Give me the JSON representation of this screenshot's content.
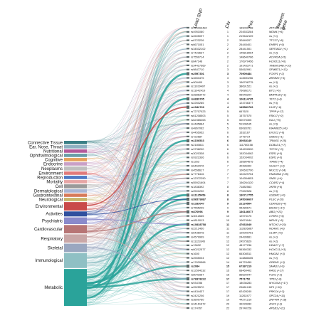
{
  "headers": {
    "snp": "Lead SNP",
    "chr": "Chr",
    "pos": "Pos",
    "gene": "Nearest gene"
  },
  "categories": [
    {
      "label": "Connective Tissue",
      "color": "#3a7f86",
      "size": 1
    },
    {
      "label": "Ear, Nose, Throat",
      "color": "#8fb0c2",
      "size": 1
    },
    {
      "label": "Nutritional",
      "color": "#b35a9a",
      "size": 1
    },
    {
      "label": "Ophthalmological",
      "color": "#6a9ea8",
      "size": 1
    },
    {
      "label": "Cognitive",
      "color": "#e6a15c",
      "size": 1
    },
    {
      "label": "Endocrine",
      "color": "#c9a0c7",
      "size": 1
    },
    {
      "label": "Neoplasms",
      "color": "#bfbfbf",
      "size": 1.2
    },
    {
      "label": "Environment",
      "color": "#e07a7a",
      "size": 1
    },
    {
      "label": "Reproduction",
      "color": "#4e79c4",
      "size": 1
    },
    {
      "label": "Mortality",
      "color": "#e6a5a5",
      "size": 1
    },
    {
      "label": "Cell",
      "color": "#9a9a9a",
      "size": 1.2
    },
    {
      "label": "Dermatological",
      "color": "#a9b5d4",
      "size": 1
    },
    {
      "label": "Gastrointestinal",
      "color": "#d67a5a",
      "size": 1
    },
    {
      "label": "Neurological",
      "color": "#c7b56a",
      "size": 1
    },
    {
      "label": "Environmental",
      "color": "#c94a4a",
      "size": 2.5
    },
    {
      "label": "Activities",
      "color": "#2f4f9e",
      "size": 1.5
    },
    {
      "label": "Psychiatric",
      "color": "#8a8acb",
      "size": 2
    },
    {
      "label": "Cardiovascular",
      "color": "#b77575",
      "size": 2.5
    },
    {
      "label": "Respiratory",
      "color": "#c9a7a7",
      "size": 2.5
    },
    {
      "label": "Skeletal",
      "color": "#9aa7c0",
      "size": 2.5
    },
    {
      "label": "Immunological",
      "color": "#8fc0c4",
      "size": 4.5
    },
    {
      "label": "Metabolic",
      "color": "#2aa39a",
      "size": 11
    }
  ],
  "rows": [
    {
      "snp": "rs145163484",
      "chr": "1",
      "pos": "169090748",
      "gene": "ATP1B1 (+8)",
      "w": 1
    },
    {
      "snp": "rs4951080",
      "chr": "1",
      "pos": "204533284",
      "gene": "MDM4 (+6)",
      "w": 1
    },
    {
      "snp": "rs2605097",
      "chr": "1",
      "pos": "219642109",
      "gene": "ns (+1)",
      "w": 1
    },
    {
      "snp": "rs6723226",
      "chr": "2",
      "pos": "32849207",
      "gene": "TTC27 (+8)",
      "w": 1
    },
    {
      "snp": "rs6671051",
      "chr": "2",
      "pos": "26445401",
      "gene": "EHBP1 (+9)",
      "w": 1
    },
    {
      "snp": "rs34532102",
      "chr": "2",
      "pos": "28441501",
      "gene": "SERTAD2 (+1)",
      "w": 1
    },
    {
      "snp": "rs7423637",
      "chr": "2",
      "pos": "145818064",
      "gene": "ns (+2)",
      "w": 1
    },
    {
      "snp": "rs7559714",
      "chr": "2",
      "pos": "148640766",
      "gene": "ACVR2A (+5)",
      "w": 1
    },
    {
      "snp": "rs647146",
      "chr": "2",
      "pos": "176970456",
      "gene": "HOXD11 (+6)",
      "w": 1
    },
    {
      "snp": "rs34417569",
      "chr": "2",
      "pos": "191433771",
      "gene": "TMEM194B (+10)",
      "w": 1
    },
    {
      "snp": "rs9847710",
      "chr": "3",
      "pos": "53062991",
      "gene": "SFMBT1 (+12)",
      "w": 1
    },
    {
      "snp": "rs2597301",
      "chr": "3",
      "pos": "70909484",
      "gene": "FOXP1 (+2)",
      "w": 2
    },
    {
      "snp": "rs4653475",
      "chr": "3",
      "pos": "114500256",
      "gene": "ZBTB20 (+5)",
      "w": 1
    },
    {
      "snp": "rs900400",
      "chr": "3",
      "pos": "156798775",
      "gene": "ns (+3)",
      "w": 1
    },
    {
      "snp": "rs11929497",
      "chr": "3",
      "pos": "38691521",
      "gene": "ns (+1)",
      "w": 1
    },
    {
      "snp": "rs11942419",
      "chr": "4",
      "pos": "75086171",
      "gene": "BTC (+6)",
      "w": 1
    },
    {
      "snp": "rs28863472",
      "chr": "4",
      "pos": "95946204",
      "gene": "BMPR1B (+1)",
      "w": 1
    },
    {
      "snp": "rs6839705",
      "chr": "4",
      "pos": "106114735",
      "gene": "TET2 (+4)",
      "w": 2
    },
    {
      "snp": "rs2260285",
      "chr": "4",
      "pos": "124746377",
      "gene": "ns (+3)",
      "w": 1
    },
    {
      "snp": "rs1542726",
      "chr": "4",
      "pos": "145581769",
      "gene": "HHIP (+6)",
      "w": 2
    },
    {
      "snp": "rs72707023",
      "chr": "5",
      "pos": "667620",
      "gene": "TPPP (+17)",
      "w": 1
    },
    {
      "snp": "rs61208503",
      "chr": "5",
      "pos": "15757570",
      "gene": "FBXL7 (+2)",
      "w": 1
    },
    {
      "snp": "rs62365263",
      "chr": "5",
      "pos": "50075305",
      "gene": "ISL1 (+5)",
      "w": 1
    },
    {
      "snp": "rs4485884",
      "chr": "5",
      "pos": "51106645",
      "gene": "ns (+5)",
      "w": 1
    },
    {
      "snp": "rs4867062",
      "chr": "5",
      "pos": "63083761",
      "gene": "KIAA0825 (+6)",
      "w": 1
    },
    {
      "snp": "rs4455952",
      "chr": "6",
      "pos": "1532167",
      "gene": "EXOC2 (+6)",
      "w": 1
    },
    {
      "snp": "rs722587",
      "chr": "6",
      "pos": "1775714",
      "gene": "GMDS (+1)",
      "w": 1
    },
    {
      "snp": "rs1156533",
      "chr": "6",
      "pos": "30068149",
      "gene": "TRIM31 (+25)",
      "w": 2
    },
    {
      "snp": "rs2180811",
      "chr": "6",
      "pos": "111780158",
      "gene": "DCBLD1 (+7)",
      "w": 1
    },
    {
      "snp": "rs3738200",
      "chr": "6",
      "pos": "134202690",
      "gene": "TCF21 (+3)",
      "w": 1
    },
    {
      "snp": "rs3020338",
      "chr": "6",
      "pos": "152034062",
      "gene": "ESR1 (+0)",
      "w": 1
    },
    {
      "snp": "rs9322336",
      "chr": "6",
      "pos": "152034092",
      "gene": "ESR1 (+0)",
      "w": 1
    },
    {
      "snp": "rs1263",
      "chr": "6",
      "pos": "155804675",
      "gene": "TIAM2 (+4)",
      "w": 1
    },
    {
      "snp": "rs6462976",
      "chr": "7",
      "pos": "40396302",
      "gene": "SUGCT (+3)",
      "w": 1
    },
    {
      "snp": "rs4556617",
      "chr": "7",
      "pos": "100632790",
      "gene": "MUC12 (+24)",
      "w": 1
    },
    {
      "snp": "rs7778416",
      "chr": "7",
      "pos": "102429754",
      "gene": "FAM185A (+25)",
      "w": 1
    },
    {
      "snp": "rs12372290",
      "chr": "7",
      "pos": "104354653",
      "gene": "SND1 (+4)",
      "w": 1
    },
    {
      "snp": "rs55921604",
      "chr": "7",
      "pos": "156264120",
      "gene": "CCAR2 (+4)",
      "w": 1
    },
    {
      "snp": "rs1838392",
      "chr": "8",
      "pos": "71882563",
      "gene": "XKR9 (+6)",
      "w": 1
    },
    {
      "snp": "rs2501290",
      "chr": "8",
      "pos": "77692528",
      "gene": "ns (+3)",
      "w": 1
    },
    {
      "snp": "rs11135456",
      "chr": "8",
      "pos": "130717755",
      "gene": "GSDMC (+0)",
      "w": 2
    },
    {
      "snp": "rs56579887",
      "chr": "8",
      "pos": "145036697",
      "gene": "PLEC (+20)",
      "w": 2
    },
    {
      "snp": "rs1333047",
      "chr": "9",
      "pos": "22124504",
      "gene": "CDKN2B (+4)",
      "w": 2
    },
    {
      "snp": "rs7555209",
      "chr": "9",
      "pos": "95489671",
      "gene": "BICD2 (+17)",
      "w": 1
    },
    {
      "snp": "rs676996",
      "chr": "9",
      "pos": "136146077",
      "gene": "ABO (+23)",
      "w": 2
    },
    {
      "snp": "rs3012665",
      "chr": "10",
      "pos": "12973175",
      "gene": "CTBP2 (+5)",
      "w": 1
    },
    {
      "snp": "rs4810013",
      "chr": "10",
      "pos": "10674044",
      "gene": "MRVI1 (+5)",
      "w": 1
    },
    {
      "snp": "rs10838758",
      "chr": "11",
      "pos": "47663049",
      "gene": "MTCH2 (+29)",
      "w": 2
    },
    {
      "snp": "rs2212450",
      "chr": "11",
      "pos": "112826867",
      "gene": "NCAM1 (+6)",
      "w": 1
    },
    {
      "snp": "rs6436978",
      "chr": "11",
      "pos": "120009751",
      "gene": "CLMP (+5)",
      "w": 1
    },
    {
      "snp": "rs4579999",
      "chr": "12",
      "pos": "24439661",
      "gene": "ns (+1)",
      "w": 1
    },
    {
      "snp": "rs11123345",
      "chr": "12",
      "pos": "24575629",
      "gene": "ns (+2)",
      "w": 1
    },
    {
      "snp": "rs13632",
      "chr": "12",
      "pos": "48177236",
      "gene": "HDAC7 (+7)",
      "w": 1
    },
    {
      "snp": "rs60212577",
      "chr": "12",
      "pos": "56360332",
      "gene": "HOXC11 (+3)",
      "w": 1
    },
    {
      "snp": "rs1600",
      "chr": "12",
      "pos": "66308511",
      "gene": "HMGA2 (+3)",
      "w": 1
    },
    {
      "snp": "rs2555004",
      "chr": "12",
      "pos": "114886605",
      "gene": "ns (+2)",
      "w": 1
    },
    {
      "snp": "rs17639568",
      "chr": "14",
      "pos": "64723459",
      "gene": "GREM1 (+3)",
      "w": 1
    },
    {
      "snp": "rs2084",
      "chr": "15",
      "pos": "67387219",
      "gene": "SMAD3 (+9)",
      "w": 2
    },
    {
      "snp": "rs12594232",
      "chr": "15",
      "pos": "68469402",
      "gene": "RAS1 (+17)",
      "w": 1
    },
    {
      "snp": "rs8041557",
      "chr": "15",
      "pos": "86620047",
      "gene": "FGX1 (+2)",
      "w": 1
    },
    {
      "snp": "rs78378222",
      "chr": "17",
      "pos": "7571752",
      "gene": "TP53 (+6)",
      "w": 2
    },
    {
      "snp": "rs934786",
      "chr": "17",
      "pos": "18036283",
      "gene": "MYO15A (+17)",
      "w": 1
    },
    {
      "snp": "rs2525570",
      "chr": "17",
      "pos": "29681245",
      "gene": "NF1 (+10)",
      "w": 1
    },
    {
      "snp": "rs4434437",
      "chr": "17",
      "pos": "62428240",
      "gene": "PRKCA (+3)",
      "w": 1
    },
    {
      "snp": "rs2421206",
      "chr": "19",
      "pos": "11262477",
      "gene": "SPC24 (+11)",
      "w": 1
    },
    {
      "snp": "rs3809760",
      "chr": "19",
      "pos": "44271210",
      "gene": "ZNF404 (+18)",
      "w": 1
    },
    {
      "snp": "rs34161672",
      "chr": "20",
      "pos": "39228282",
      "gene": "ZHX3 (+4)",
      "w": 1
    },
    {
      "snp": "rs174767",
      "chr": "22",
      "pos": "29740728",
      "gene": "AP1B1 (+11)",
      "w": 1
    }
  ]
}
